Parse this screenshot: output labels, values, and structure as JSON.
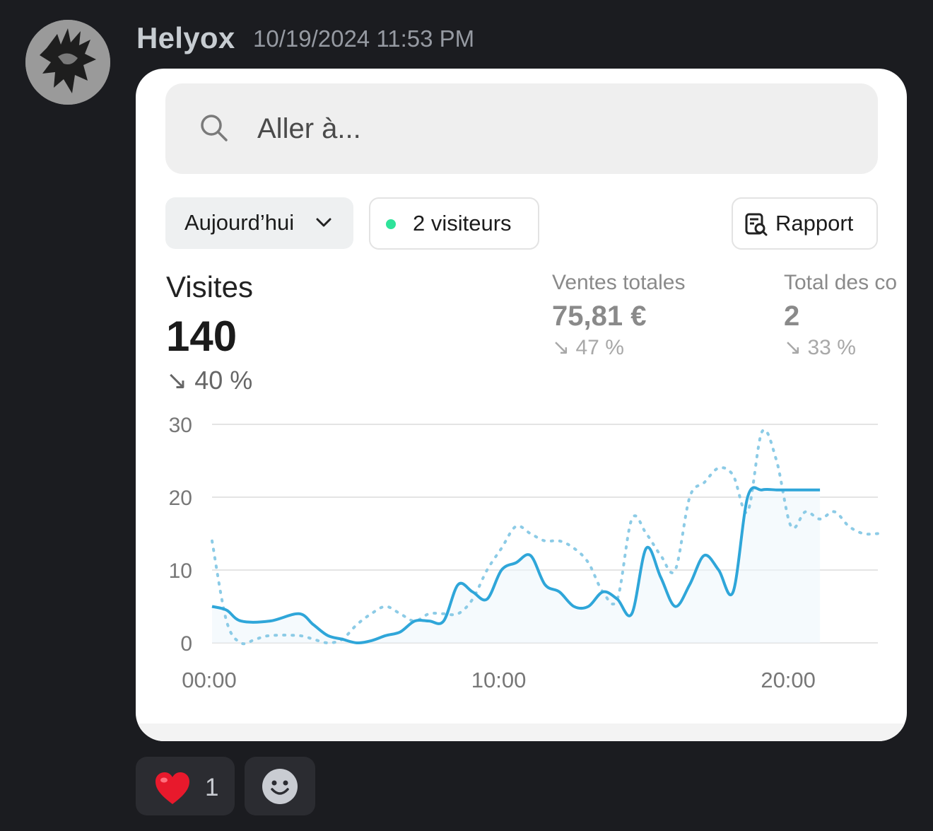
{
  "message": {
    "author": "Helyox",
    "timestamp": "10/19/2024 11:53 PM"
  },
  "screenshot": {
    "search": {
      "placeholder": "Aller à..."
    },
    "filters": {
      "period_label": "Aujourd’hui",
      "visitors_label": "2 visiteurs",
      "report_label": "Rapport"
    },
    "stats": {
      "main": {
        "label": "Visites",
        "value": "140",
        "change": "40 %",
        "change_arrow": "↘"
      },
      "sales": {
        "label": "Ventes totales",
        "value": "75,81 €",
        "change": "47 %",
        "change_arrow": "↘"
      },
      "orders": {
        "label": "Total des co",
        "value": "2",
        "change": "33 %",
        "change_arrow": "↘"
      }
    },
    "colors": {
      "line_current": "#2fa6d9",
      "line_previous": "#8ccbe6",
      "live_dot": "#2ee39a"
    }
  },
  "chart_data": {
    "type": "line",
    "x_ticks": [
      "00:00",
      "10:00",
      "20:00"
    ],
    "y_ticks": [
      0,
      10,
      20,
      30
    ],
    "ylim": [
      0,
      30
    ],
    "xlim": [
      0,
      23
    ],
    "grid": true,
    "series": [
      {
        "style": "solid",
        "x": [
          0,
          0.5,
          1,
          2,
          3,
          3.5,
          4,
          4.5,
          5,
          5.5,
          6,
          6.5,
          7,
          7.5,
          8,
          8.5,
          9,
          9.5,
          10,
          10.5,
          11,
          11.5,
          12,
          12.5,
          13,
          13.5,
          14,
          14.5,
          15,
          15.5,
          16,
          16.5,
          17,
          17.5,
          18,
          18.5,
          19,
          19.5,
          20,
          20.5,
          21
        ],
        "y": [
          5,
          4.5,
          3,
          3,
          4,
          2.5,
          1,
          0.5,
          0,
          0.3,
          1,
          1.5,
          3,
          3,
          3,
          8,
          7,
          6,
          10,
          11,
          12,
          8,
          7,
          5,
          5,
          7,
          6,
          4,
          13,
          9,
          5,
          8,
          12,
          10,
          7,
          20,
          21,
          21,
          21,
          21,
          21
        ]
      },
      {
        "style": "dotted",
        "x": [
          0,
          0.5,
          1,
          1.5,
          2,
          3,
          3.5,
          4,
          4.5,
          5,
          5.5,
          6,
          6.5,
          7,
          7.5,
          8,
          8.5,
          9,
          9.5,
          10,
          10.5,
          11,
          11.5,
          12,
          12.5,
          13,
          13.5,
          14,
          14.5,
          15,
          15.5,
          16,
          16.5,
          17,
          17.5,
          18,
          18.5,
          19,
          19.5,
          20,
          20.5,
          21,
          21.5,
          22,
          22.5,
          23
        ],
        "y": [
          14,
          3,
          0,
          0.5,
          1,
          1,
          0.5,
          0,
          0.5,
          2.5,
          4,
          5,
          4,
          3,
          4,
          4,
          4,
          6,
          10,
          13,
          16,
          15,
          14,
          14,
          13,
          11,
          7,
          6,
          17,
          15,
          12,
          10,
          20,
          22,
          24,
          23,
          18,
          29,
          25,
          16,
          18,
          17,
          18,
          16,
          15,
          15
        ]
      }
    ]
  }
}
